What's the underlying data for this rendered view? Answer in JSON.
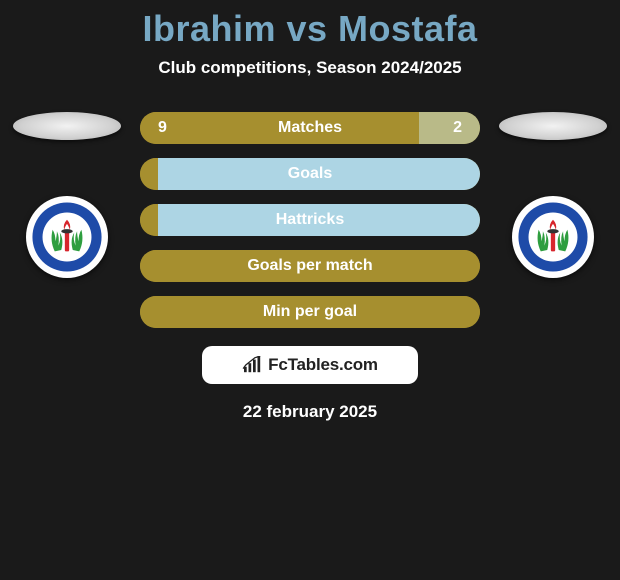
{
  "title": "Ibrahim vs Mostafa",
  "subtitle": "Club competitions, Season 2024/2025",
  "date": "22 february 2025",
  "watermark": {
    "text": "FcTables.com"
  },
  "colors": {
    "bg": "#1a1a1a",
    "title": "#77a8c4",
    "bar_left": "#a68f2f",
    "bar_right": "#b9ba88",
    "bar_zero_left": "#a68f2f",
    "bar_zero_right": "#add5e4",
    "bar_full": "#a68f2f",
    "text": "#ffffff"
  },
  "badges": {
    "left": {
      "ring_outer": "#1e4ba8",
      "ring_text": "#ffffff",
      "inner_bg": "#ffffff",
      "laurel": "#2e9e3f",
      "torch_handle": "#d7262d",
      "flame": "#d7262d",
      "club_name": "SMOUHA SPORTING CLUB"
    },
    "right": {
      "ring_outer": "#1e4ba8",
      "ring_text": "#ffffff",
      "inner_bg": "#ffffff",
      "laurel": "#2e9e3f",
      "torch_handle": "#d7262d",
      "flame": "#d7262d",
      "club_name": "SMOUHA SPORTING CLUB"
    }
  },
  "stats": [
    {
      "label": "Matches",
      "left_value": "9",
      "right_value": "2",
      "left_pct": 82,
      "right_pct": 18,
      "left_color": "#a68f2f",
      "right_color": "#b9ba88"
    },
    {
      "label": "Goals",
      "left_value": "0",
      "right_value": "",
      "left_pct": 3,
      "right_pct": 97,
      "left_color": "#a68f2f",
      "right_color": "#add5e4"
    },
    {
      "label": "Hattricks",
      "left_value": "0",
      "right_value": "",
      "left_pct": 3,
      "right_pct": 97,
      "left_color": "#a68f2f",
      "right_color": "#add5e4"
    },
    {
      "label": "Goals per match",
      "left_value": "",
      "right_value": "",
      "left_pct": 100,
      "right_pct": 0,
      "left_color": "#a68f2f",
      "right_color": "#a68f2f"
    },
    {
      "label": "Min per goal",
      "left_value": "",
      "right_value": "",
      "left_pct": 100,
      "right_pct": 0,
      "left_color": "#a68f2f",
      "right_color": "#a68f2f"
    }
  ]
}
